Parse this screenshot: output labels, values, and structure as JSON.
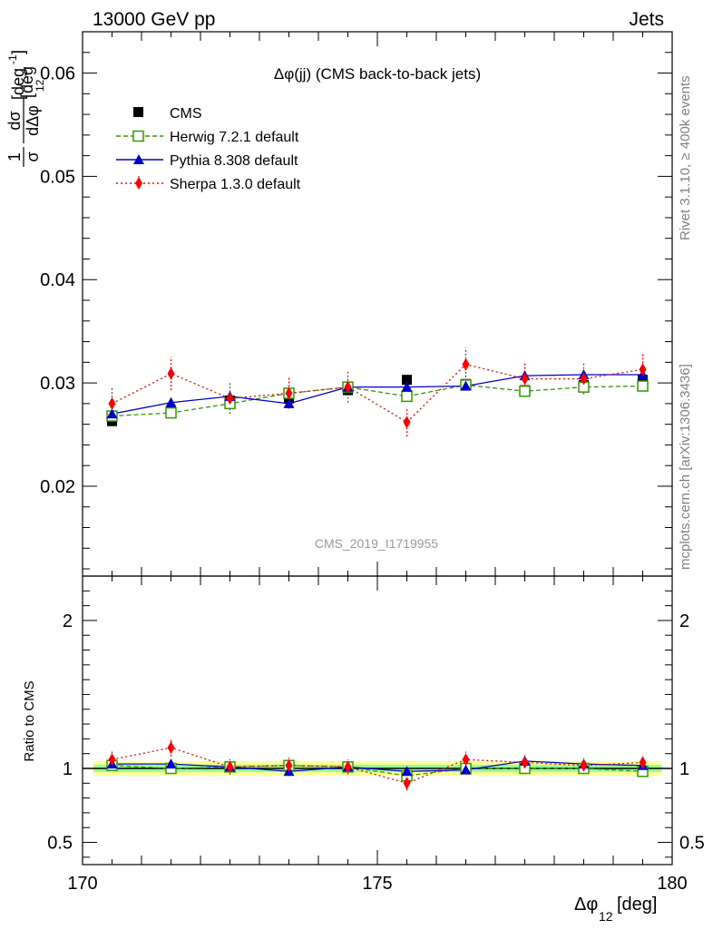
{
  "header": {
    "left": "13000 GeV pp",
    "right": "Jets"
  },
  "side_labels": {
    "rivet": "Rivet 3.1.10, ≥ 400k events",
    "site": "mcplots.cern.ch [arXiv:1306.3436]"
  },
  "chart_data": {
    "type": "line",
    "title": "Δφ(jj) (CMS back-to-back jets)",
    "watermark": "CMS_2019_I1719955",
    "ylabel_main": {
      "frac_num": "1",
      "frac_den": "σ",
      "deriv_num": "dσ",
      "deriv_den": "dΔφ",
      "deriv_den_sub": "12",
      "unit": "[deg",
      "unit_sup": "-1",
      "unit_close": "]"
    },
    "ylabel_ratio": "Ratio to CMS",
    "xlabel": {
      "main": "Δφ",
      "sub": "12",
      "unit": " [deg]"
    },
    "xlim": [
      170,
      180
    ],
    "ylim": [
      0.0113,
      0.064
    ],
    "ylim_ratio": [
      0.35,
      2.3
    ],
    "x_ticks": [
      "170",
      "175",
      "180"
    ],
    "y_ticks": [
      "0.02",
      "0.03",
      "0.04",
      "0.05",
      "0.06"
    ],
    "y_ticks_ratio": [
      "0.5",
      "1",
      "2"
    ],
    "x": [
      170.5,
      171.5,
      172.5,
      173.5,
      174.5,
      175.5,
      176.5,
      177.5,
      178.5,
      179.5
    ],
    "data": {
      "name": "CMS",
      "color": "#000000",
      "values": [
        0.0263,
        0.0272,
        0.0283,
        0.0285,
        0.0293,
        0.0303,
        0.0299,
        0.0293,
        0.0298,
        0.0303
      ]
    },
    "series": [
      {
        "name": "Herwig 7.2.1 default",
        "color": "#339900",
        "style": "dashed",
        "marker": "open-square",
        "values": [
          0.0268,
          0.0271,
          0.028,
          0.029,
          0.0296,
          0.0287,
          0.0298,
          0.0292,
          0.0296,
          0.0297
        ],
        "ratio": [
          1.02,
          1.0,
          1.01,
          1.02,
          1.01,
          0.95,
          1.0,
          1.0,
          1.0,
          0.98
        ]
      },
      {
        "name": "Pythia 8.308 default",
        "color": "#0000cc",
        "style": "solid",
        "marker": "triangle",
        "values": [
          0.027,
          0.0281,
          0.0287,
          0.028,
          0.0296,
          0.0296,
          0.0297,
          0.0307,
          0.0308,
          0.0308
        ],
        "ratio": [
          1.03,
          1.03,
          1.01,
          0.98,
          1.01,
          0.98,
          0.99,
          1.05,
          1.03,
          1.02
        ]
      },
      {
        "name": "Sherpa 1.3.0 default",
        "color": "#ff0000",
        "style": "dotted",
        "marker": "diamond",
        "values": [
          0.028,
          0.0309,
          0.0285,
          0.029,
          0.0296,
          0.0262,
          0.0318,
          0.0304,
          0.0304,
          0.0313
        ],
        "errors": [
          0.0015,
          0.0016,
          0.0015,
          0.0015,
          0.0015,
          0.0014,
          0.0016,
          0.0015,
          0.0015,
          0.0015
        ],
        "ratio": [
          1.06,
          1.14,
          1.01,
          1.02,
          1.01,
          0.9,
          1.06,
          1.04,
          1.02,
          1.04
        ]
      }
    ],
    "band_ratio": {
      "inner": 0.025,
      "outer": 0.05
    },
    "colors": {
      "band_inner": "#99ff99",
      "band_outer": "#ffff99"
    }
  }
}
